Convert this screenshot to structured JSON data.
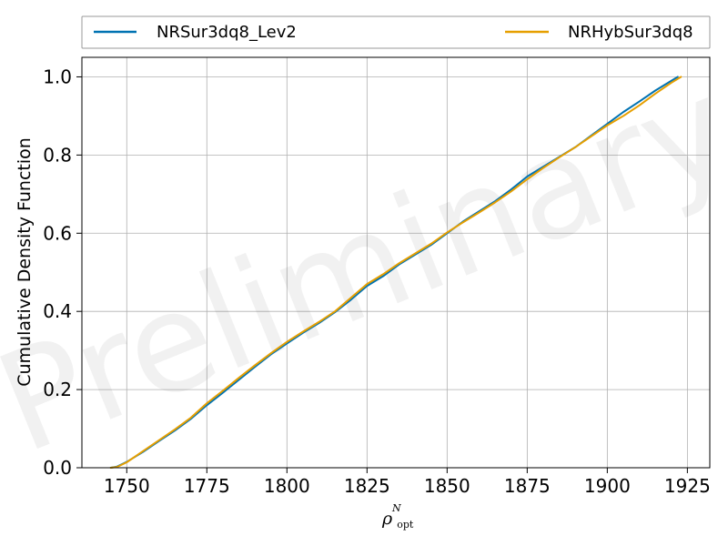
{
  "chart_data": {
    "type": "line",
    "title": "",
    "xlabel": {
      "base": "ρ",
      "sub": "opt",
      "sup": "N"
    },
    "ylabel": "Cumulative Density Function",
    "xlim": [
      1736,
      1932
    ],
    "ylim": [
      0,
      1.05
    ],
    "xticks": [
      1750,
      1775,
      1800,
      1825,
      1850,
      1875,
      1900,
      1925
    ],
    "yticks": [
      0.0,
      0.2,
      0.4,
      0.6,
      0.8,
      1.0
    ],
    "ytick_labels": [
      "0.0",
      "0.2",
      "0.4",
      "0.6",
      "0.8",
      "1.0"
    ],
    "grid": true,
    "legend_placement": "top, outside plot",
    "watermark": "Preliminary",
    "series": [
      {
        "name": "NRSur3dq8_Lev2",
        "color": "#0072B2",
        "x": [
          1745,
          1747,
          1750,
          1755,
          1760,
          1765,
          1770,
          1775,
          1780,
          1785,
          1790,
          1795,
          1800,
          1805,
          1810,
          1815,
          1820,
          1825,
          1830,
          1835,
          1840,
          1845,
          1850,
          1855,
          1860,
          1865,
          1870,
          1875,
          1880,
          1885,
          1890,
          1895,
          1900,
          1905,
          1910,
          1915,
          1920,
          1922
        ],
        "y": [
          0.0,
          0.003,
          0.015,
          0.04,
          0.068,
          0.095,
          0.125,
          0.16,
          0.192,
          0.225,
          0.258,
          0.29,
          0.318,
          0.345,
          0.37,
          0.398,
          0.43,
          0.465,
          0.49,
          0.52,
          0.545,
          0.57,
          0.6,
          0.63,
          0.656,
          0.682,
          0.712,
          0.745,
          0.77,
          0.795,
          0.82,
          0.85,
          0.88,
          0.91,
          0.937,
          0.965,
          0.99,
          1.0
        ]
      },
      {
        "name": "NRHybSur3dq8",
        "color": "#E69F00",
        "x": [
          1745,
          1747,
          1750,
          1755,
          1760,
          1765,
          1770,
          1775,
          1780,
          1785,
          1790,
          1795,
          1800,
          1805,
          1810,
          1815,
          1820,
          1825,
          1830,
          1835,
          1840,
          1845,
          1850,
          1855,
          1860,
          1865,
          1870,
          1875,
          1880,
          1885,
          1890,
          1895,
          1900,
          1905,
          1910,
          1915,
          1920,
          1923
        ],
        "y": [
          0.0,
          0.002,
          0.014,
          0.042,
          0.07,
          0.098,
          0.128,
          0.165,
          0.197,
          0.23,
          0.262,
          0.293,
          0.322,
          0.348,
          0.373,
          0.4,
          0.435,
          0.47,
          0.495,
          0.523,
          0.548,
          0.573,
          0.602,
          0.628,
          0.653,
          0.679,
          0.707,
          0.738,
          0.767,
          0.794,
          0.82,
          0.848,
          0.876,
          0.9,
          0.927,
          0.957,
          0.985,
          1.0
        ]
      }
    ]
  }
}
